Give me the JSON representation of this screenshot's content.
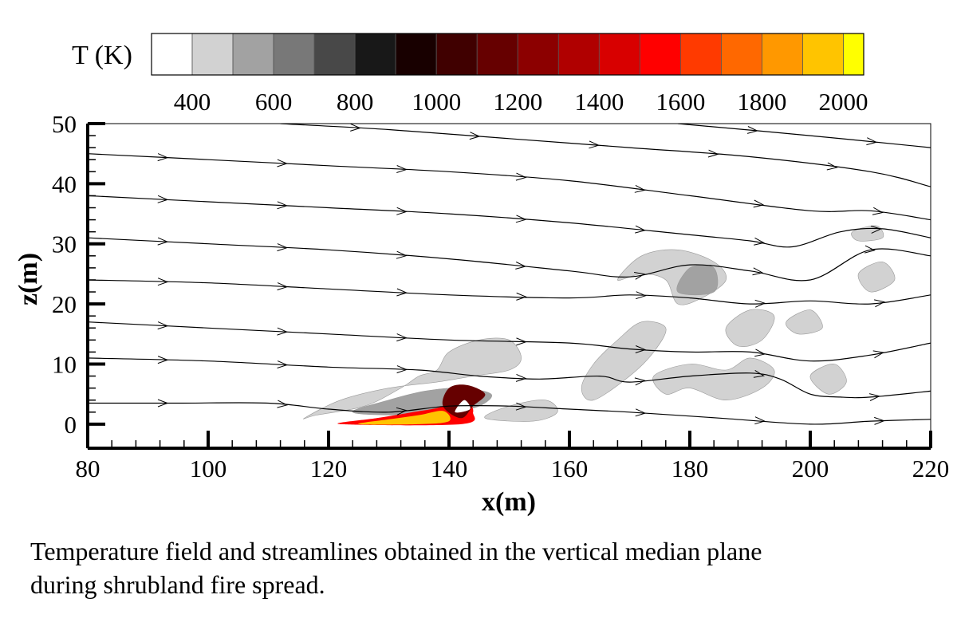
{
  "chart_data": {
    "type": "contour",
    "colorbar": {
      "title": "T (K)",
      "tick_labels": [
        "400",
        "600",
        "800",
        "1000",
        "1200",
        "1400",
        "1600",
        "1800",
        "2000"
      ],
      "tick_values": [
        400,
        600,
        800,
        1000,
        1200,
        1400,
        1600,
        1800,
        2000
      ],
      "levels": [
        300,
        400,
        500,
        600,
        700,
        800,
        900,
        1000,
        1100,
        1200,
        1300,
        1400,
        1500,
        1600,
        1700,
        1800,
        1900,
        2000,
        2050
      ],
      "colors": [
        "#ffffff",
        "#d2d2d2",
        "#a2a2a2",
        "#787878",
        "#484848",
        "#181818",
        "#180000",
        "#400000",
        "#660000",
        "#8c0000",
        "#b00000",
        "#d80000",
        "#ff0000",
        "#ff3a00",
        "#ff6800",
        "#ff9800",
        "#ffc400",
        "#ffff00"
      ]
    },
    "xlabel": "x(m)",
    "ylabel": "z(m)",
    "xlim": [
      80,
      220
    ],
    "ylim": [
      -4,
      50
    ],
    "x_ticks": [
      80,
      100,
      120,
      140,
      160,
      180,
      200,
      220
    ],
    "y_ticks": [
      0,
      10,
      20,
      30,
      40,
      50
    ],
    "streamlines": [
      {
        "points": [
          [
            80,
            3.5
          ],
          [
            95,
            3.5
          ],
          [
            110,
            3.5
          ],
          [
            120,
            2.5
          ],
          [
            130,
            2.0
          ],
          [
            140,
            3.0
          ],
          [
            150,
            3.0
          ],
          [
            160,
            2.5
          ],
          [
            170,
            2.0
          ],
          [
            185,
            1.0
          ],
          [
            200,
            0.0
          ],
          [
            210,
            0.5
          ],
          [
            220,
            0.8
          ]
        ]
      },
      {
        "points": [
          [
            80,
            11
          ],
          [
            100,
            10.5
          ],
          [
            120,
            9.5
          ],
          [
            135,
            9.0
          ],
          [
            145,
            8.0
          ],
          [
            155,
            7.5
          ],
          [
            165,
            8.0
          ],
          [
            170,
            7.0
          ],
          [
            180,
            8.0
          ],
          [
            190,
            8.5
          ],
          [
            195,
            7.5
          ],
          [
            200,
            5.0
          ],
          [
            205,
            4.5
          ],
          [
            210,
            4.5
          ],
          [
            220,
            5.5
          ]
        ]
      },
      {
        "points": [
          [
            80,
            17
          ],
          [
            100,
            16
          ],
          [
            120,
            15
          ],
          [
            140,
            14
          ],
          [
            160,
            13.5
          ],
          [
            170,
            12.5
          ],
          [
            180,
            12.0
          ],
          [
            190,
            12.0
          ],
          [
            200,
            10.5
          ],
          [
            210,
            11.5
          ],
          [
            220,
            13.5
          ]
        ]
      },
      {
        "points": [
          [
            80,
            24
          ],
          [
            100,
            23.5
          ],
          [
            120,
            22.5
          ],
          [
            140,
            21.5
          ],
          [
            160,
            21.0
          ],
          [
            170,
            21.5
          ],
          [
            180,
            21.0
          ],
          [
            190,
            20.0
          ],
          [
            200,
            20.5
          ],
          [
            210,
            20.0
          ],
          [
            220,
            21.5
          ]
        ]
      },
      {
        "points": [
          [
            80,
            31
          ],
          [
            100,
            30.0
          ],
          [
            120,
            29.0
          ],
          [
            140,
            27.5
          ],
          [
            160,
            25.5
          ],
          [
            170,
            24.5
          ],
          [
            180,
            26.5
          ],
          [
            190,
            25.5
          ],
          [
            200,
            24.0
          ],
          [
            210,
            29.0
          ],
          [
            220,
            28.0
          ]
        ]
      },
      {
        "points": [
          [
            80,
            38
          ],
          [
            100,
            37.0
          ],
          [
            120,
            36.0
          ],
          [
            140,
            35.0
          ],
          [
            160,
            33.5
          ],
          [
            180,
            31.5
          ],
          [
            190,
            30.5
          ],
          [
            197,
            29.5
          ],
          [
            205,
            32.0
          ],
          [
            212,
            32.5
          ],
          [
            220,
            31.0
          ]
        ]
      },
      {
        "points": [
          [
            80,
            45
          ],
          [
            100,
            44.0
          ],
          [
            120,
            43.0
          ],
          [
            140,
            42.0
          ],
          [
            160,
            40.5
          ],
          [
            180,
            38.0
          ],
          [
            200,
            35.5
          ],
          [
            210,
            35.5
          ],
          [
            220,
            34.0
          ]
        ]
      },
      {
        "points": [
          [
            112,
            50
          ],
          [
            130,
            49.0
          ],
          [
            150,
            47.5
          ],
          [
            170,
            46.0
          ],
          [
            190,
            44.5
          ],
          [
            210,
            42.0
          ],
          [
            220,
            39.5
          ]
        ]
      },
      {
        "points": [
          [
            178,
            50
          ],
          [
            200,
            48.0
          ],
          [
            220,
            46.0
          ]
        ]
      }
    ],
    "temperature_regions": [
      {
        "level_K": 450,
        "points": [
          [
            116,
            1
          ],
          [
            122,
            4
          ],
          [
            130,
            6
          ],
          [
            138,
            7
          ],
          [
            144,
            8
          ],
          [
            150,
            9
          ],
          [
            152,
            11
          ],
          [
            150,
            14
          ],
          [
            145,
            14
          ],
          [
            140,
            12
          ],
          [
            138,
            9
          ],
          [
            135,
            8
          ],
          [
            132,
            6
          ],
          [
            126,
            3
          ],
          [
            118,
            1.5
          ]
        ]
      },
      {
        "level_K": 550,
        "points": [
          [
            124,
            2
          ],
          [
            130,
            4
          ],
          [
            136,
            5.5
          ],
          [
            142,
            6
          ],
          [
            147,
            5
          ],
          [
            145,
            3
          ],
          [
            140,
            2
          ],
          [
            132,
            1.5
          ]
        ]
      },
      {
        "level_K": 450,
        "points": [
          [
            146,
            1
          ],
          [
            150,
            3
          ],
          [
            156,
            4
          ],
          [
            158,
            2
          ],
          [
            154,
            0.5
          ]
        ]
      },
      {
        "level_K": 450,
        "points": [
          [
            164,
            4
          ],
          [
            170,
            8
          ],
          [
            174,
            12
          ],
          [
            176,
            16
          ],
          [
            172,
            17
          ],
          [
            168,
            14
          ],
          [
            164,
            10
          ],
          [
            162,
            6
          ]
        ]
      },
      {
        "level_K": 450,
        "points": [
          [
            168,
            24
          ],
          [
            172,
            28
          ],
          [
            178,
            29
          ],
          [
            184,
            27
          ],
          [
            186,
            24
          ],
          [
            182,
            21
          ],
          [
            178,
            20
          ],
          [
            176,
            24
          ],
          [
            172,
            25
          ]
        ]
      },
      {
        "level_K": 550,
        "points": [
          [
            178,
            22
          ],
          [
            180,
            26
          ],
          [
            184,
            26
          ],
          [
            184,
            22
          ]
        ]
      },
      {
        "level_K": 450,
        "points": [
          [
            174,
            8
          ],
          [
            180,
            10
          ],
          [
            186,
            9
          ],
          [
            190,
            11
          ],
          [
            194,
            9
          ],
          [
            192,
            6
          ],
          [
            186,
            4
          ],
          [
            180,
            6
          ],
          [
            176,
            5
          ]
        ]
      },
      {
        "level_K": 450,
        "points": [
          [
            186,
            16
          ],
          [
            190,
            19
          ],
          [
            194,
            18
          ],
          [
            192,
            14
          ],
          [
            188,
            13
          ]
        ]
      },
      {
        "level_K": 450,
        "points": [
          [
            200,
            8
          ],
          [
            204,
            10
          ],
          [
            206,
            7
          ],
          [
            203,
            5
          ]
        ]
      },
      {
        "level_K": 450,
        "points": [
          [
            208,
            25
          ],
          [
            212,
            27
          ],
          [
            214,
            24
          ],
          [
            210,
            22
          ]
        ]
      },
      {
        "level_K": 450,
        "points": [
          [
            207,
            32
          ],
          [
            211,
            33
          ],
          [
            212,
            31
          ],
          [
            208,
            30.5
          ]
        ]
      },
      {
        "level_K": 450,
        "points": [
          [
            196,
            17
          ],
          [
            200,
            19
          ],
          [
            202,
            16
          ],
          [
            198,
            15
          ]
        ]
      }
    ],
    "flame_regions": [
      {
        "level_K": 1500,
        "points": [
          [
            122,
            0
          ],
          [
            128,
            1
          ],
          [
            134,
            2
          ],
          [
            139,
            3
          ],
          [
            141,
            5
          ],
          [
            143,
            4
          ],
          [
            144,
            2
          ],
          [
            142,
            0
          ]
        ]
      },
      {
        "level_K": 1900,
        "points": [
          [
            125,
            0
          ],
          [
            130,
            0.8
          ],
          [
            135,
            1.5
          ],
          [
            139,
            2.2
          ],
          [
            140,
            0.5
          ],
          [
            135,
            0
          ]
        ]
      },
      {
        "level_K": 1100,
        "points": [
          [
            139,
            3
          ],
          [
            140,
            6
          ],
          [
            143,
            6.5
          ],
          [
            146,
            5
          ],
          [
            144,
            3
          ],
          [
            142,
            1
          ]
        ]
      },
      {
        "level_K": 350,
        "points": [
          [
            141,
            2
          ],
          [
            142.5,
            4
          ],
          [
            143.5,
            2.5
          ]
        ]
      }
    ]
  },
  "caption": {
    "line1": "Temperature field and streamlines obtained in the vertical median plane",
    "line2": "during shrubland fire spread."
  }
}
